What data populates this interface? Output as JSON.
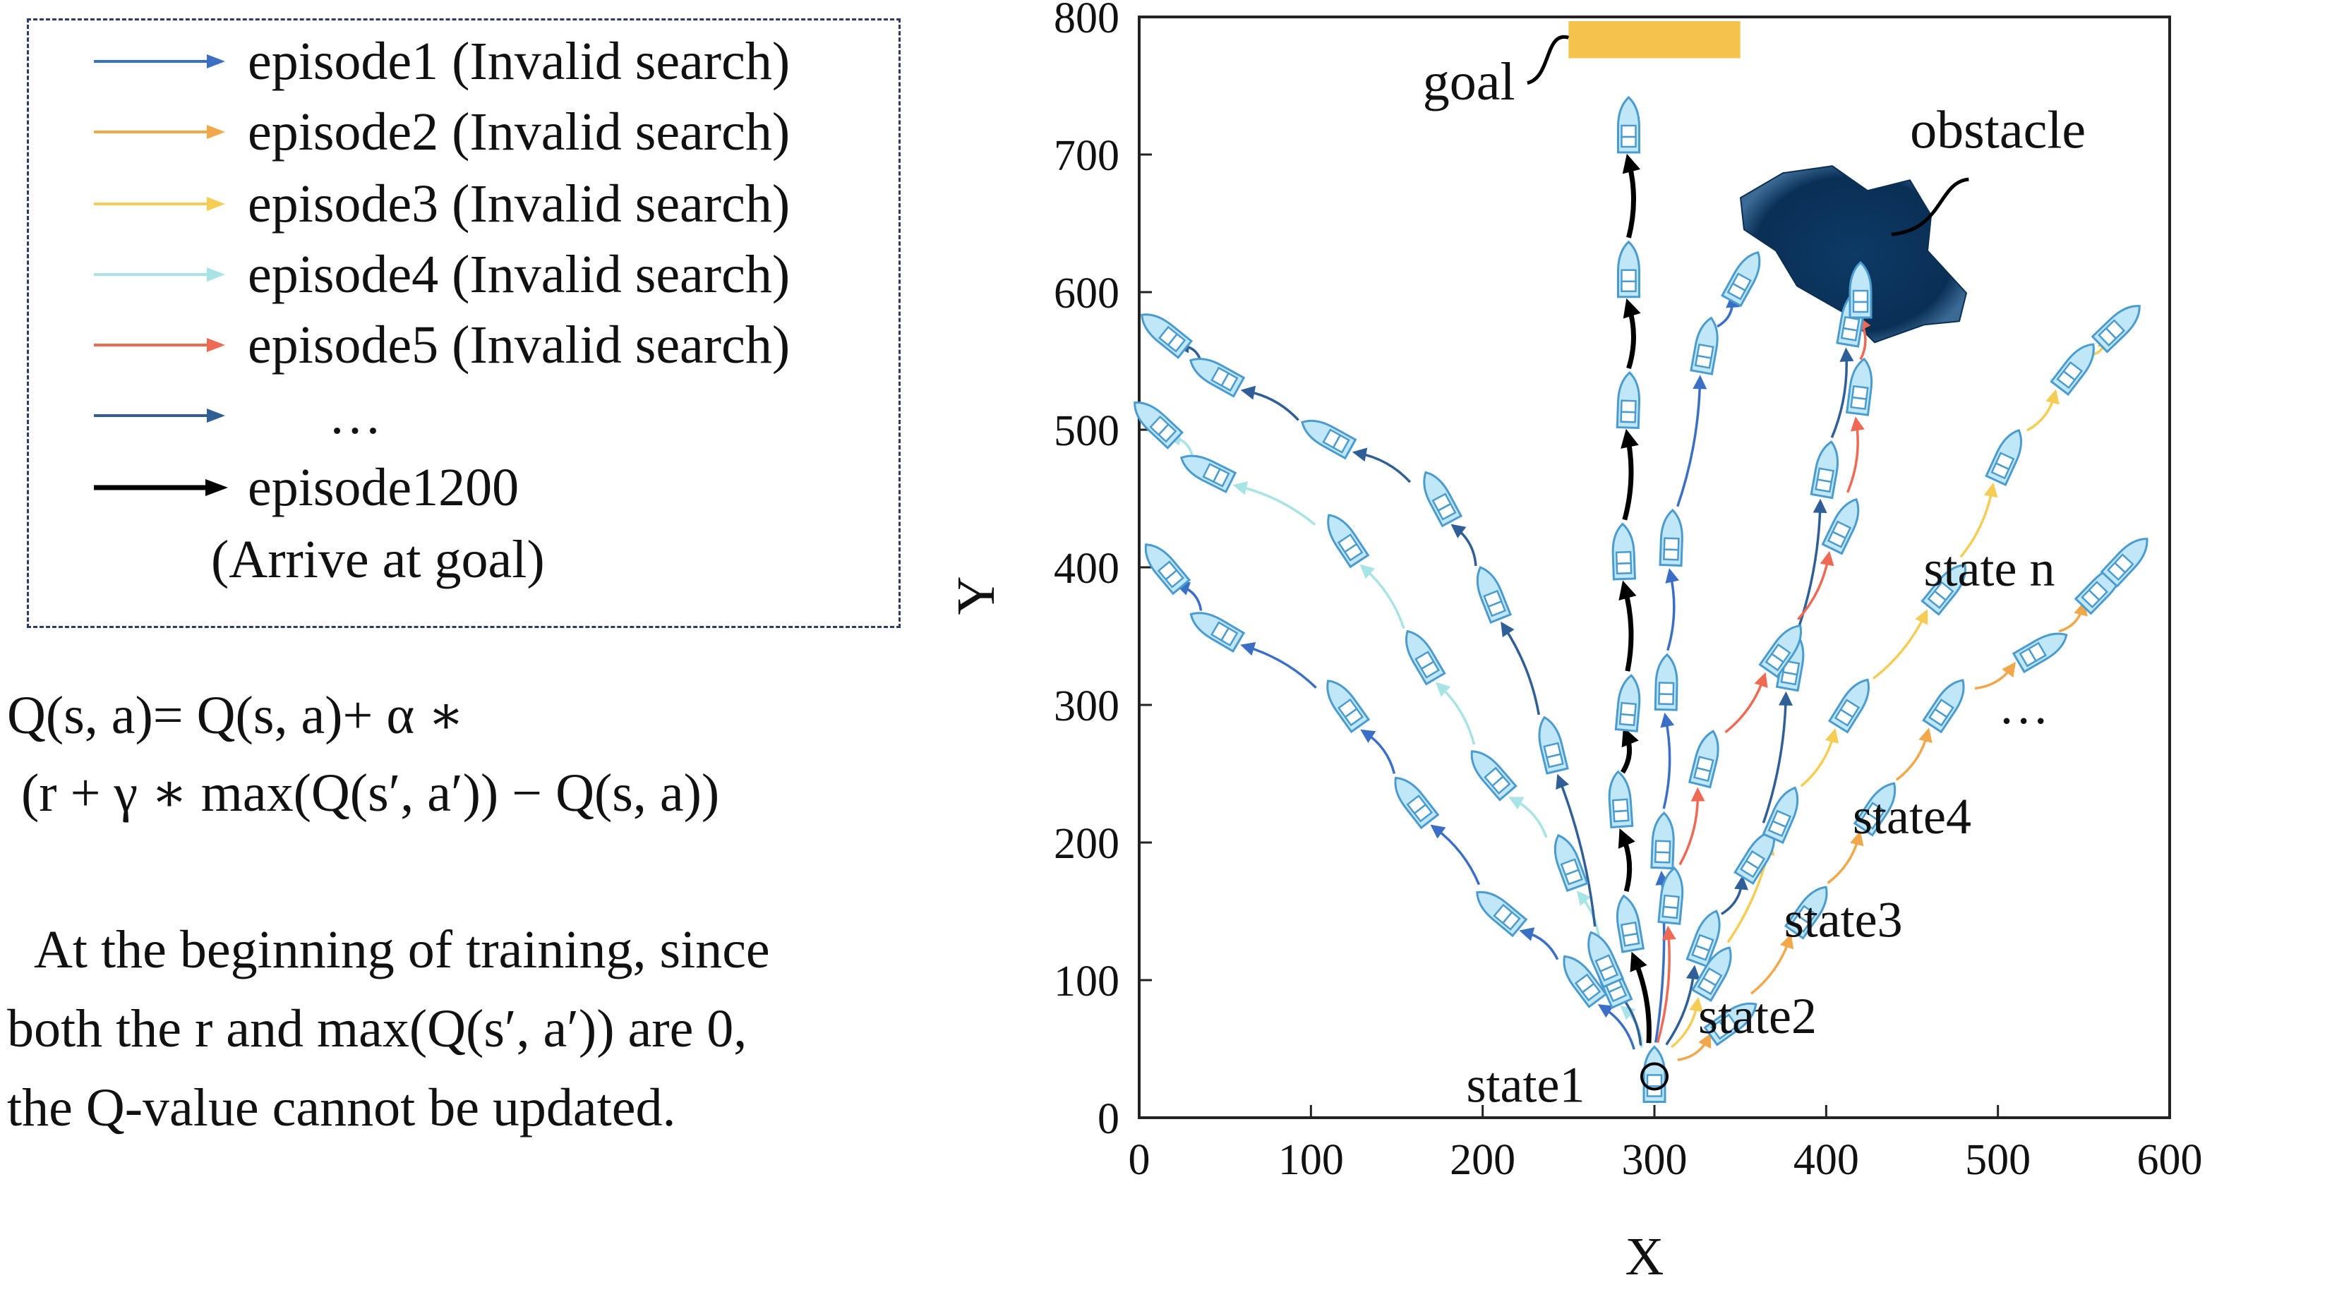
{
  "legend": {
    "items": [
      {
        "label": "episode1 (Invalid search)",
        "color": "#3b6fc6"
      },
      {
        "label": "episode2 (Invalid search)",
        "color": "#f0a84a"
      },
      {
        "label": "episode3 (Invalid search)",
        "color": "#f5cd55"
      },
      {
        "label": "episode4 (Invalid search)",
        "color": "#a8e3e6"
      },
      {
        "label": "episode5 (Invalid search)",
        "color": "#ee6a55"
      },
      {
        "label": "…",
        "color": "#2f5f96"
      },
      {
        "label": "episode1200",
        "color": "#000000"
      }
    ],
    "last_sub": "(Arrive at goal)"
  },
  "formula": {
    "line1": "Q(s, a)= Q(s, a)+ α ∗",
    "line2": "(r + γ ∗ max(Q(s′, a′)) − Q(s, a))"
  },
  "paragraph": {
    "line1": "At the beginning of training, since",
    "line2": "both the r and max(Q(s′, a′)) are 0,",
    "line3": "the Q-value cannot be updated."
  },
  "chart_data": {
    "type": "diagram",
    "xlabel": "X",
    "ylabel": "Y",
    "xlim": [
      0,
      600
    ],
    "ylim": [
      0,
      800
    ],
    "xticks": [
      0,
      100,
      200,
      300,
      400,
      500,
      600
    ],
    "yticks": [
      0,
      100,
      200,
      300,
      400,
      500,
      600,
      700,
      800
    ],
    "goal": {
      "label": "goal",
      "x": [
        250,
        350
      ],
      "y": [
        770,
        800
      ],
      "color": "#f5c24c"
    },
    "obstacle": {
      "label": "obstacle",
      "center": [
        420,
        625
      ],
      "color": "#0d3a66"
    },
    "state_labels": [
      {
        "label": "state1",
        "x": 225,
        "y": 25
      },
      {
        "label": "state2",
        "x": 360,
        "y": 75
      },
      {
        "label": "state3",
        "x": 410,
        "y": 145
      },
      {
        "label": "state4",
        "x": 450,
        "y": 220
      },
      {
        "label": "state n",
        "x": 495,
        "y": 400
      },
      {
        "label": "…",
        "x": 515,
        "y": 300
      }
    ],
    "series": [
      {
        "color": "#3b6fc6",
        "points": [
          [
            300,
            30
          ],
          [
            258,
            100
          ],
          [
            210,
            150
          ],
          [
            160,
            230
          ],
          [
            120,
            300
          ],
          [
            45,
            355
          ],
          [
            15,
            400
          ]
        ]
      },
      {
        "color": "#a8e3e6",
        "points": [
          [
            300,
            30
          ],
          [
            275,
            100
          ],
          [
            250,
            185
          ],
          [
            205,
            250
          ],
          [
            165,
            335
          ],
          [
            120,
            420
          ],
          [
            40,
            470
          ],
          [
            10,
            505
          ]
        ]
      },
      {
        "color": "#2f5f96",
        "points": [
          [
            300,
            30
          ],
          [
            270,
            115
          ],
          [
            240,
            270
          ],
          [
            205,
            380
          ],
          [
            175,
            450
          ],
          [
            110,
            495
          ],
          [
            45,
            540
          ],
          [
            15,
            570
          ]
        ]
      },
      {
        "color": "#000000",
        "points": [
          [
            300,
            30
          ],
          [
            285,
            140
          ],
          [
            280,
            230
          ],
          [
            285,
            300
          ],
          [
            282,
            410
          ],
          [
            285,
            520
          ],
          [
            285,
            615
          ],
          [
            285,
            720
          ]
        ]
      },
      {
        "color": "#3b6fc6",
        "points": [
          [
            300,
            30
          ],
          [
            305,
            200
          ],
          [
            307,
            315
          ],
          [
            310,
            420
          ],
          [
            330,
            560
          ],
          [
            352,
            610
          ]
        ]
      },
      {
        "color": "#2f5f96",
        "points": [
          [
            300,
            30
          ],
          [
            330,
            130
          ],
          [
            360,
            190
          ],
          [
            380,
            330
          ],
          [
            400,
            470
          ],
          [
            415,
            580
          ]
        ]
      },
      {
        "color": "#ee6a55",
        "points": [
          [
            300,
            30
          ],
          [
            310,
            160
          ],
          [
            330,
            260
          ],
          [
            375,
            340
          ],
          [
            410,
            430
          ],
          [
            420,
            530
          ],
          [
            420,
            600
          ]
        ]
      },
      {
        "color": "#f5cd55",
        "points": [
          [
            300,
            30
          ],
          [
            335,
            105
          ],
          [
            375,
            220
          ],
          [
            415,
            300
          ],
          [
            470,
            385
          ],
          [
            505,
            480
          ],
          [
            545,
            545
          ],
          [
            570,
            575
          ]
        ]
      },
      {
        "color": "#f0a84a",
        "points": [
          [
            300,
            30
          ],
          [
            345,
            70
          ],
          [
            390,
            150
          ],
          [
            430,
            225
          ],
          [
            470,
            300
          ],
          [
            525,
            340
          ],
          [
            560,
            385
          ],
          [
            575,
            405
          ]
        ]
      }
    ]
  }
}
